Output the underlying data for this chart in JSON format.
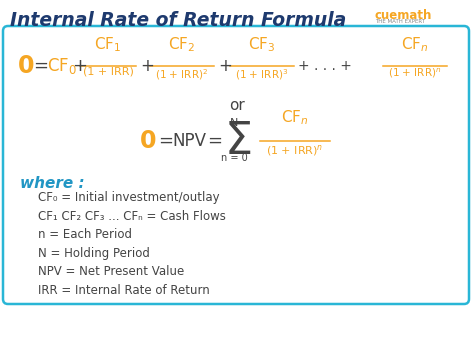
{
  "title": "Internal Rate of Return Formula",
  "title_color": "#1e3a6e",
  "title_fontsize": 13.5,
  "bg_color": "#ffffff",
  "box_edge_color": "#29b6d6",
  "orange_color": "#f5a623",
  "dark_color": "#444444",
  "where_color": "#2196c4",
  "where_label": "where :",
  "cuemath_text": "cuemath",
  "cuemath_sub": "THE MATH EXPERT",
  "definitions": [
    "CF₀ = Initial investment/outlay",
    "CF₁ CF₂ CF₃ ... CFₙ = Cash Flows",
    "n = Each Period",
    "N = Holding Period",
    "NPV = Net Present Value",
    "IRR = Internal Rate of Return"
  ]
}
